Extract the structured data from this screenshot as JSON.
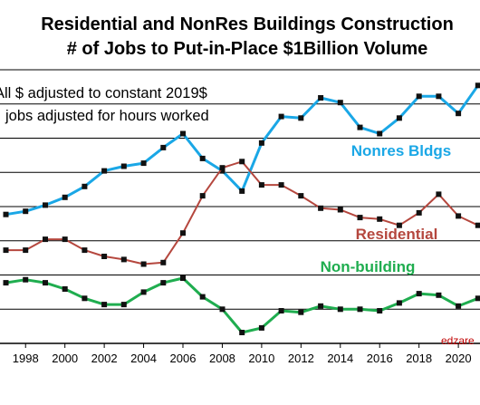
{
  "chart_data": {
    "type": "line",
    "title": [
      "Residential and NonRes Buildings Construction",
      "# of Jobs to Put-in-Place $1Billion Volume"
    ],
    "notes": [
      "All $ adjusted to constant 2019$",
      "jobs adjusted for hours worked"
    ],
    "watermark": "edzare",
    "xlabel": "",
    "ylabel": "",
    "x_ticks": [
      "1998",
      "2000",
      "2002",
      "2004",
      "2006",
      "2008",
      "2010",
      "2012",
      "2014",
      "2016",
      "2018",
      "2020"
    ],
    "x": [
      1997,
      1998,
      1999,
      2000,
      2001,
      2002,
      2003,
      2004,
      2005,
      2006,
      2007,
      2008,
      2009,
      2010,
      2011,
      2012,
      2013,
      2014,
      2015,
      2016,
      2017,
      2018,
      2019,
      2020,
      2021
    ],
    "xlim": [
      1996.7,
      2021.1
    ],
    "ylim": [
      0,
      10
    ],
    "grid": true,
    "series": [
      {
        "name": "Nonres Bldgs",
        "color": "#1aa7e6",
        "marker": "square",
        "values": [
          4.15,
          4.25,
          4.45,
          4.7,
          5.05,
          5.55,
          5.7,
          5.8,
          6.3,
          6.75,
          5.95,
          5.55,
          4.9,
          6.45,
          7.3,
          7.25,
          7.9,
          7.75,
          6.95,
          6.75,
          7.25,
          7.95,
          7.95,
          7.4,
          8.3
        ]
      },
      {
        "name": "Residential",
        "color": "#b5473e",
        "marker": "square",
        "values": [
          3.0,
          3.0,
          3.35,
          3.35,
          3.0,
          2.8,
          2.7,
          2.55,
          2.6,
          3.55,
          4.75,
          5.65,
          5.85,
          5.1,
          5.1,
          4.75,
          4.35,
          4.3,
          4.05,
          4.0,
          3.8,
          4.2,
          4.8,
          4.1,
          3.8
        ]
      },
      {
        "name": "Non-building",
        "color": "#1fad4f",
        "marker": "square",
        "values": [
          1.95,
          2.05,
          1.95,
          1.75,
          1.45,
          1.25,
          1.25,
          1.65,
          1.95,
          2.1,
          1.5,
          1.1,
          0.35,
          0.5,
          1.05,
          1.0,
          1.2,
          1.1,
          1.1,
          1.05,
          1.3,
          1.6,
          1.55,
          1.2,
          1.45
        ]
      }
    ]
  }
}
